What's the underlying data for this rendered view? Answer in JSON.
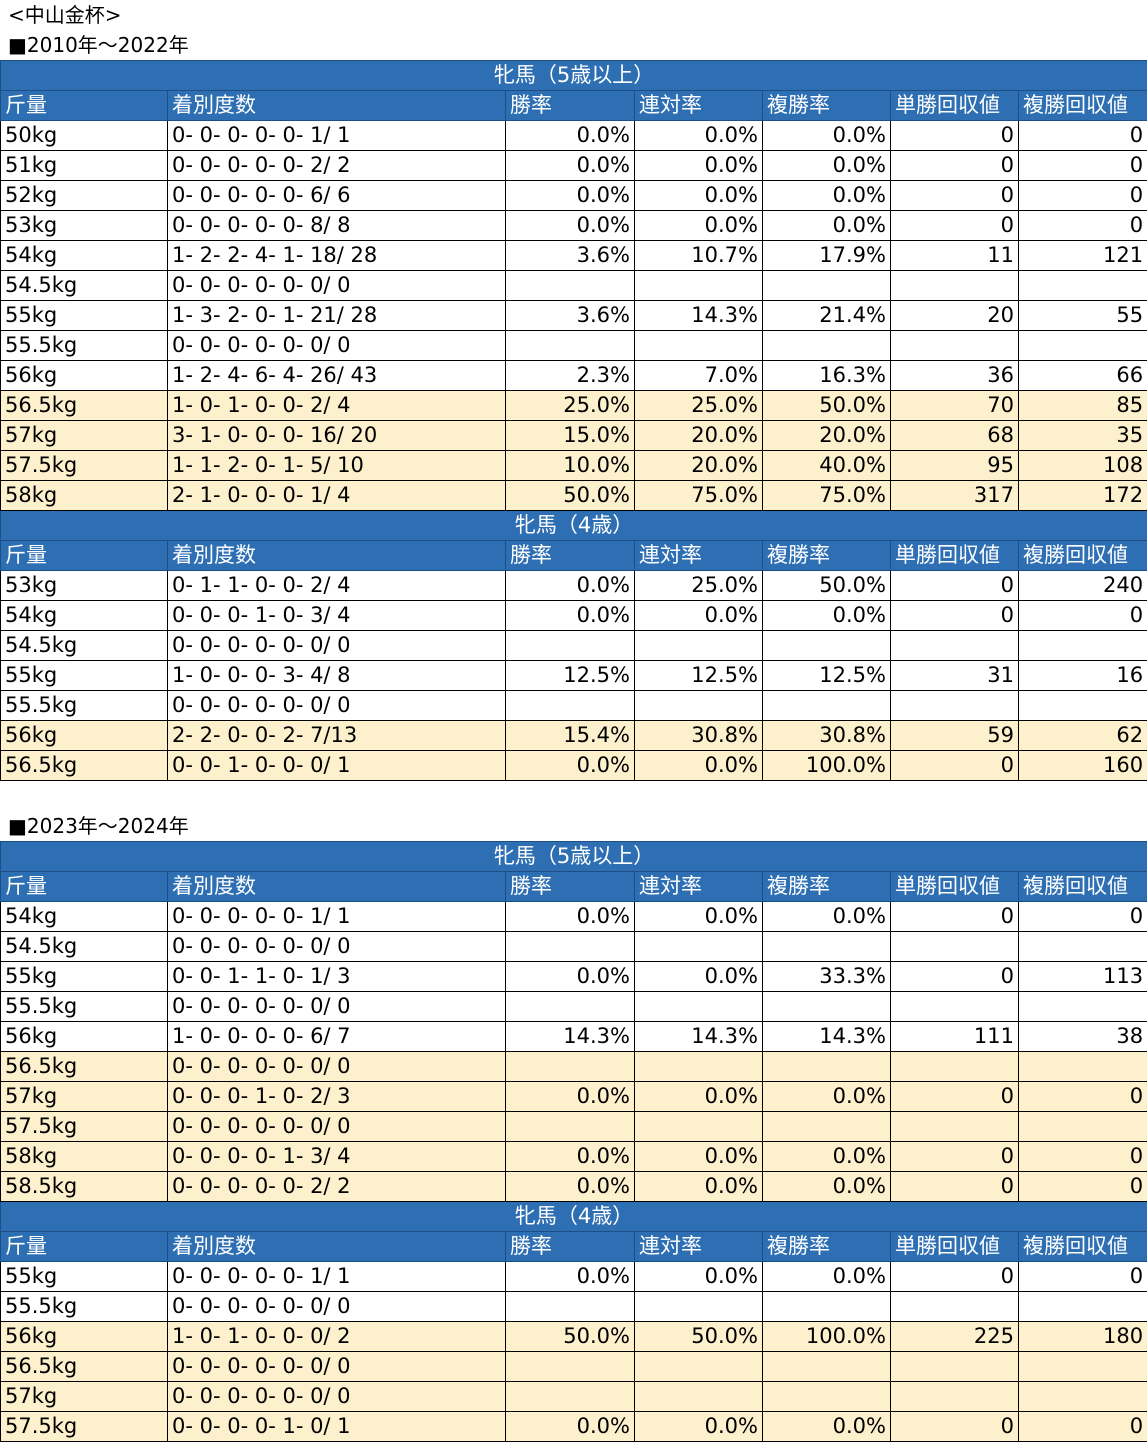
{
  "page_title": "<中山金杯>",
  "columns": [
    "斤量",
    "着別度数",
    "勝率",
    "連対率",
    "複勝率",
    "単勝回収値",
    "複勝回収値"
  ],
  "sections": [
    {
      "title": "■2010年～2022年",
      "groups": [
        {
          "name": "牝馬（5歳以上）",
          "rows": [
            {
              "w": "50kg",
              "r": "0- 0- 0- 0- 0- 1/ 1",
              "win": "0.0%",
              "ren": "0.0%",
              "fuku": "0.0%",
              "tan_ret": "0",
              "fuku_ret": "0",
              "hl": false
            },
            {
              "w": "51kg",
              "r": "0- 0- 0- 0- 0- 2/ 2",
              "win": "0.0%",
              "ren": "0.0%",
              "fuku": "0.0%",
              "tan_ret": "0",
              "fuku_ret": "0",
              "hl": false
            },
            {
              "w": "52kg",
              "r": "0- 0- 0- 0- 0- 6/ 6",
              "win": "0.0%",
              "ren": "0.0%",
              "fuku": "0.0%",
              "tan_ret": "0",
              "fuku_ret": "0",
              "hl": false
            },
            {
              "w": "53kg",
              "r": "0- 0- 0- 0- 0- 8/ 8",
              "win": "0.0%",
              "ren": "0.0%",
              "fuku": "0.0%",
              "tan_ret": "0",
              "fuku_ret": "0",
              "hl": false
            },
            {
              "w": "54kg",
              "r": "1- 2- 2- 4- 1- 18/ 28",
              "win": "3.6%",
              "ren": "10.7%",
              "fuku": "17.9%",
              "tan_ret": "11",
              "fuku_ret": "121",
              "hl": false
            },
            {
              "w": "54.5kg",
              "r": "0- 0- 0- 0- 0- 0/ 0",
              "win": "",
              "ren": "",
              "fuku": "",
              "tan_ret": "",
              "fuku_ret": "",
              "hl": false
            },
            {
              "w": "55kg",
              "r": "1- 3- 2- 0- 1- 21/ 28",
              "win": "3.6%",
              "ren": "14.3%",
              "fuku": "21.4%",
              "tan_ret": "20",
              "fuku_ret": "55",
              "hl": false
            },
            {
              "w": "55.5kg",
              "r": "0- 0- 0- 0- 0- 0/ 0",
              "win": "",
              "ren": "",
              "fuku": "",
              "tan_ret": "",
              "fuku_ret": "",
              "hl": false
            },
            {
              "w": "56kg",
              "r": "1- 2- 4- 6- 4- 26/ 43",
              "win": "2.3%",
              "ren": "7.0%",
              "fuku": "16.3%",
              "tan_ret": "36",
              "fuku_ret": "66",
              "hl": false
            },
            {
              "w": "56.5kg",
              "r": "1- 0- 1- 0- 0- 2/ 4",
              "win": "25.0%",
              "ren": "25.0%",
              "fuku": "50.0%",
              "tan_ret": "70",
              "fuku_ret": "85",
              "hl": true
            },
            {
              "w": "57kg",
              "r": "3- 1- 0- 0- 0- 16/ 20",
              "win": "15.0%",
              "ren": "20.0%",
              "fuku": "20.0%",
              "tan_ret": "68",
              "fuku_ret": "35",
              "hl": true
            },
            {
              "w": "57.5kg",
              "r": "1- 1- 2- 0- 1- 5/ 10",
              "win": "10.0%",
              "ren": "20.0%",
              "fuku": "40.0%",
              "tan_ret": "95",
              "fuku_ret": "108",
              "hl": true
            },
            {
              "w": "58kg",
              "r": "2- 1- 0- 0- 0- 1/ 4",
              "win": "50.0%",
              "ren": "75.0%",
              "fuku": "75.0%",
              "tan_ret": "317",
              "fuku_ret": "172",
              "hl": true
            }
          ]
        },
        {
          "name": "牝馬（4歳）",
          "rows": [
            {
              "w": "53kg",
              "r": "0- 1- 1- 0- 0- 2/ 4",
              "win": "0.0%",
              "ren": "25.0%",
              "fuku": "50.0%",
              "tan_ret": "0",
              "fuku_ret": "240",
              "hl": false
            },
            {
              "w": "54kg",
              "r": "0- 0- 0- 1- 0- 3/ 4",
              "win": "0.0%",
              "ren": "0.0%",
              "fuku": "0.0%",
              "tan_ret": "0",
              "fuku_ret": "0",
              "hl": false
            },
            {
              "w": "54.5kg",
              "r": "0- 0- 0- 0- 0- 0/ 0",
              "win": "",
              "ren": "",
              "fuku": "",
              "tan_ret": "",
              "fuku_ret": "",
              "hl": false
            },
            {
              "w": "55kg",
              "r": "1- 0- 0- 0- 3- 4/ 8",
              "win": "12.5%",
              "ren": "12.5%",
              "fuku": "12.5%",
              "tan_ret": "31",
              "fuku_ret": "16",
              "hl": false
            },
            {
              "w": "55.5kg",
              "r": "0- 0- 0- 0- 0- 0/ 0",
              "win": "",
              "ren": "",
              "fuku": "",
              "tan_ret": "",
              "fuku_ret": "",
              "hl": false
            },
            {
              "w": "56kg",
              "r": "2- 2- 0- 0- 2- 7/13",
              "win": "15.4%",
              "ren": "30.8%",
              "fuku": "30.8%",
              "tan_ret": "59",
              "fuku_ret": "62",
              "hl": true
            },
            {
              "w": "56.5kg",
              "r": "0- 0- 1- 0- 0- 0/ 1",
              "win": "0.0%",
              "ren": "0.0%",
              "fuku": "100.0%",
              "tan_ret": "0",
              "fuku_ret": "160",
              "hl": true
            }
          ]
        }
      ]
    },
    {
      "title": "■2023年～2024年",
      "groups": [
        {
          "name": "牝馬（5歳以上）",
          "rows": [
            {
              "w": "54kg",
              "r": "0- 0- 0- 0- 0- 1/ 1",
              "win": "0.0%",
              "ren": "0.0%",
              "fuku": "0.0%",
              "tan_ret": "0",
              "fuku_ret": "0",
              "hl": false
            },
            {
              "w": "54.5kg",
              "r": "0- 0- 0- 0- 0- 0/ 0",
              "win": "",
              "ren": "",
              "fuku": "",
              "tan_ret": "",
              "fuku_ret": "",
              "hl": false
            },
            {
              "w": "55kg",
              "r": "0- 0- 1- 1- 0- 1/ 3",
              "win": "0.0%",
              "ren": "0.0%",
              "fuku": "33.3%",
              "tan_ret": "0",
              "fuku_ret": "113",
              "hl": false
            },
            {
              "w": "55.5kg",
              "r": "0- 0- 0- 0- 0- 0/ 0",
              "win": "",
              "ren": "",
              "fuku": "",
              "tan_ret": "",
              "fuku_ret": "",
              "hl": false
            },
            {
              "w": "56kg",
              "r": "1- 0- 0- 0- 0- 6/ 7",
              "win": "14.3%",
              "ren": "14.3%",
              "fuku": "14.3%",
              "tan_ret": "111",
              "fuku_ret": "38",
              "hl": false
            },
            {
              "w": "56.5kg",
              "r": "0- 0- 0- 0- 0- 0/ 0",
              "win": "",
              "ren": "",
              "fuku": "",
              "tan_ret": "",
              "fuku_ret": "",
              "hl": true
            },
            {
              "w": "57kg",
              "r": "0- 0- 0- 1- 0- 2/ 3",
              "win": "0.0%",
              "ren": "0.0%",
              "fuku": "0.0%",
              "tan_ret": "0",
              "fuku_ret": "0",
              "hl": true
            },
            {
              "w": "57.5kg",
              "r": "0- 0- 0- 0- 0- 0/ 0",
              "win": "",
              "ren": "",
              "fuku": "",
              "tan_ret": "",
              "fuku_ret": "",
              "hl": true
            },
            {
              "w": "58kg",
              "r": "0- 0- 0- 0- 1- 3/ 4",
              "win": "0.0%",
              "ren": "0.0%",
              "fuku": "0.0%",
              "tan_ret": "0",
              "fuku_ret": "0",
              "hl": true
            },
            {
              "w": "58.5kg",
              "r": "0- 0- 0- 0- 0- 2/ 2",
              "win": "0.0%",
              "ren": "0.0%",
              "fuku": "0.0%",
              "tan_ret": "0",
              "fuku_ret": "0",
              "hl": true
            }
          ]
        },
        {
          "name": "牝馬（4歳）",
          "rows": [
            {
              "w": "55kg",
              "r": "0- 0- 0- 0- 0- 1/ 1",
              "win": "0.0%",
              "ren": "0.0%",
              "fuku": "0.0%",
              "tan_ret": "0",
              "fuku_ret": "0",
              "hl": false
            },
            {
              "w": "55.5kg",
              "r": "0- 0- 0- 0- 0- 0/ 0",
              "win": "",
              "ren": "",
              "fuku": "",
              "tan_ret": "",
              "fuku_ret": "",
              "hl": false
            },
            {
              "w": "56kg",
              "r": "1- 0- 1- 0- 0- 0/ 2",
              "win": "50.0%",
              "ren": "50.0%",
              "fuku": "100.0%",
              "tan_ret": "225",
              "fuku_ret": "180",
              "hl": true
            },
            {
              "w": "56.5kg",
              "r": "0- 0- 0- 0- 0- 0/ 0",
              "win": "",
              "ren": "",
              "fuku": "",
              "tan_ret": "",
              "fuku_ret": "",
              "hl": true
            },
            {
              "w": "57kg",
              "r": "0- 0- 0- 0- 0- 0/ 0",
              "win": "",
              "ren": "",
              "fuku": "",
              "tan_ret": "",
              "fuku_ret": "",
              "hl": true
            },
            {
              "w": "57.5kg",
              "r": "0- 0- 0- 0- 1- 0/ 1",
              "win": "0.0%",
              "ren": "0.0%",
              "fuku": "0.0%",
              "tan_ret": "0",
              "fuku_ret": "0",
              "hl": true
            }
          ]
        }
      ]
    }
  ]
}
